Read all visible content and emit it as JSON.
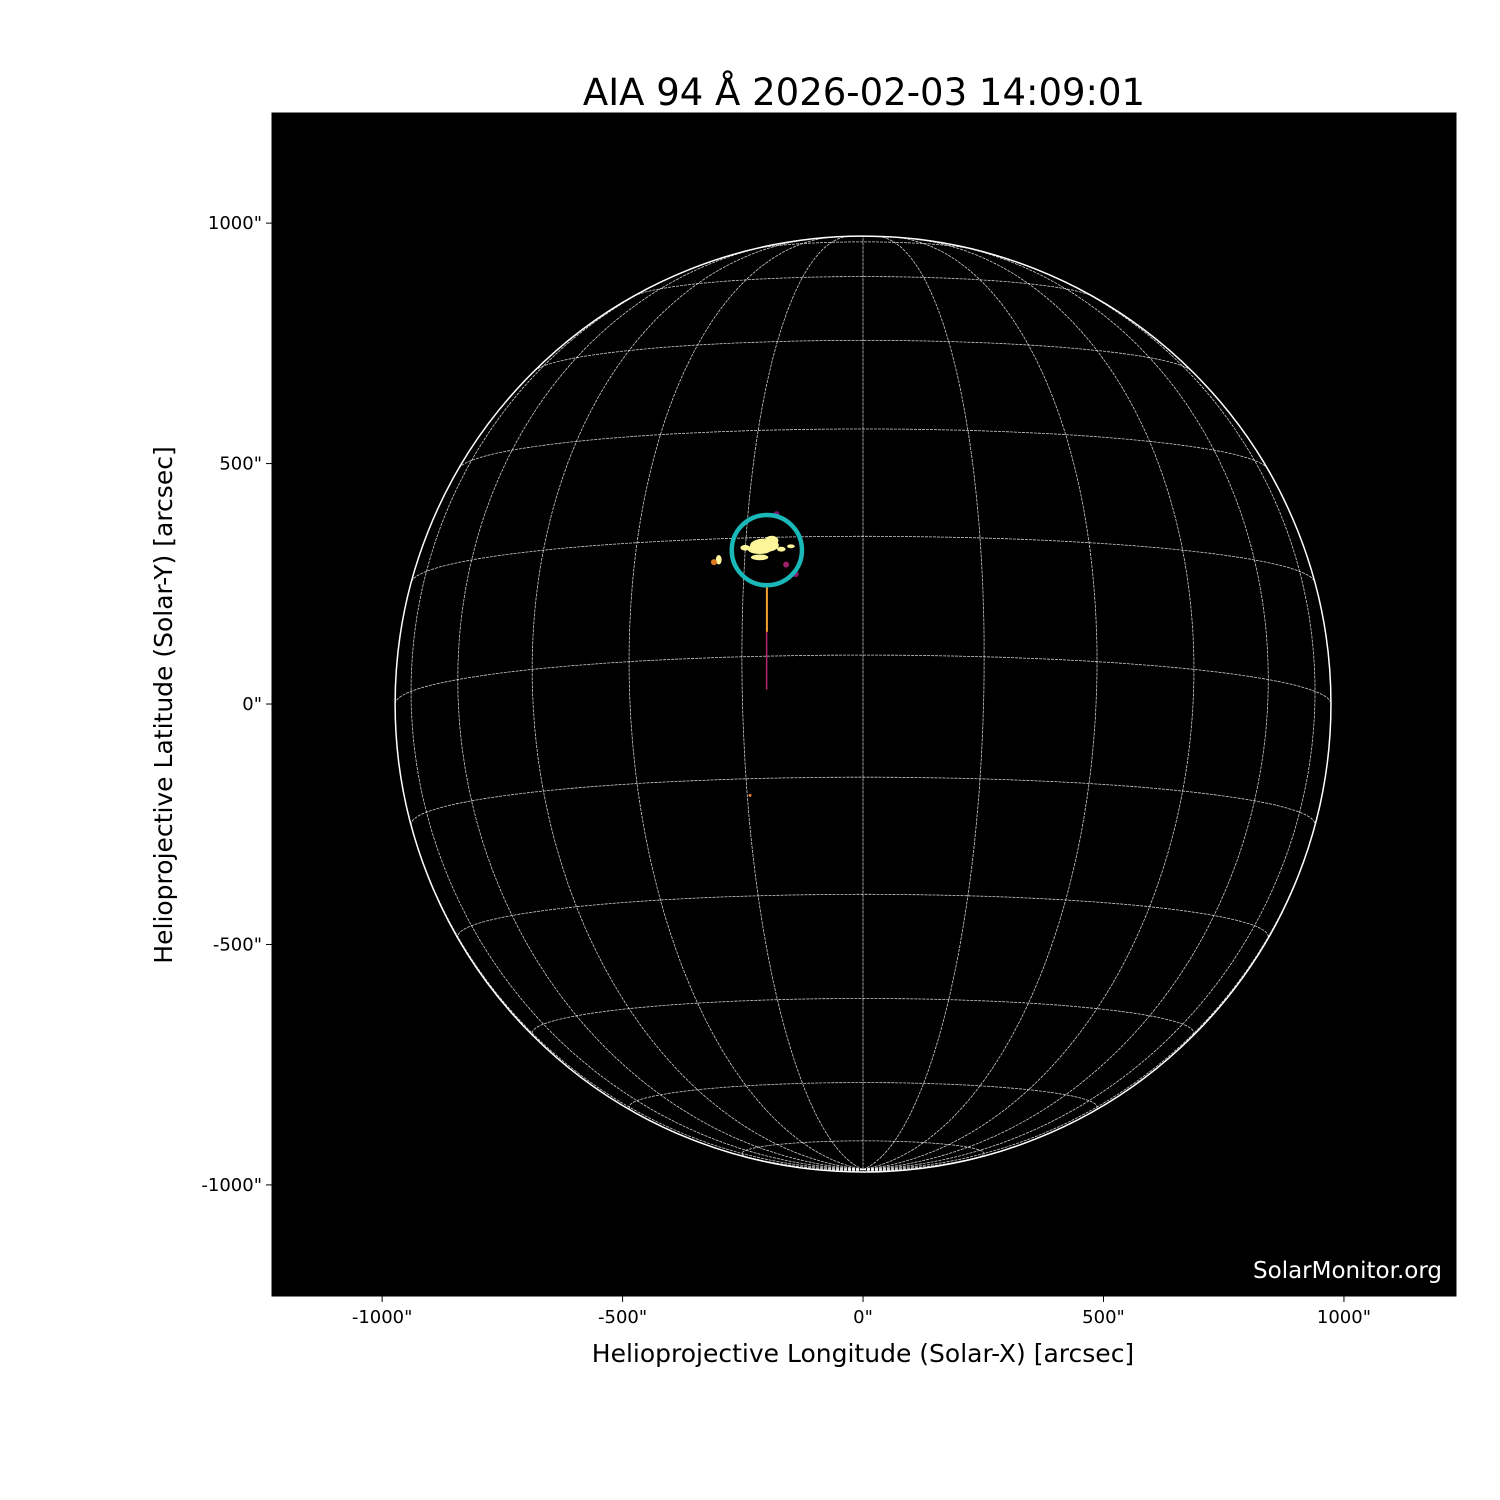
{
  "chart_data": {
    "type": "heatmap",
    "title": "AIA 94 Å 2026-02-03 14:09:01",
    "xlabel": "Helioprojective Longitude (Solar-X) [arcsec]",
    "ylabel": "Helioprojective Latitude (Solar-Y) [arcsec]",
    "xlim": [
      -1229,
      1233
    ],
    "ylim": [
      -1231,
      1229
    ],
    "xticks": [
      -1000,
      -500,
      0,
      500,
      1000
    ],
    "xtick_labels": [
      "-1000\"",
      "-500\"",
      "0\"",
      "500\"",
      "1000\""
    ],
    "yticks": [
      1000,
      500,
      0,
      -500,
      -1000
    ],
    "ytick_labels": [
      "1000\"",
      "500\"",
      "0\"",
      "-500\"",
      "-1000\""
    ],
    "solar_radius_arcsec": 973,
    "grid": {
      "type": "heliographic",
      "spacing_deg": 15,
      "color": "#ffffff"
    },
    "background_color": "#000000",
    "colormap": "inferno-like (AIA 94)",
    "active_region_marker": {
      "center": [
        -200,
        320
      ],
      "radius": 73,
      "color": "#1ab8b8"
    },
    "bright_feature": {
      "center": [
        -205,
        320
      ],
      "color": "#fcf59a"
    },
    "watermark": "SolarMonitor.org"
  }
}
